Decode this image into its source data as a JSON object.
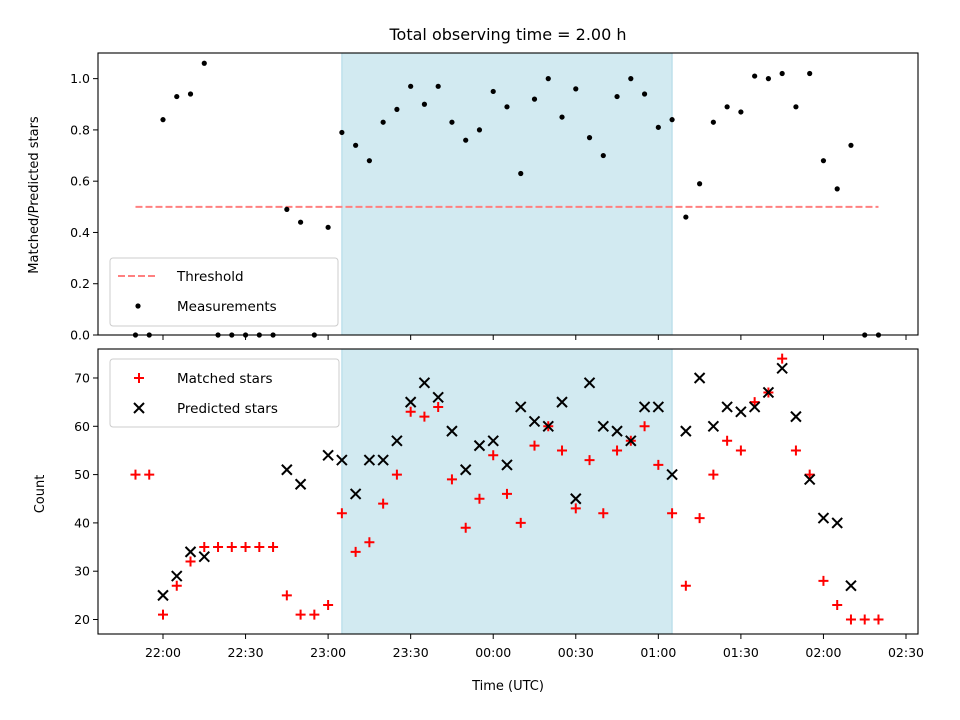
{
  "chart_data": [
    {
      "type": "scatter",
      "title": "Total observing time = 2.00 h",
      "xlabel": "",
      "ylabel": "Matched/Predicted stars",
      "ylim": [
        0,
        1.1
      ],
      "yticks": [
        "0.0",
        "0.2",
        "0.4",
        "0.6",
        "0.8",
        "1.0"
      ],
      "observing_window": [
        "23:05",
        "01:05"
      ],
      "threshold": {
        "name": "Threshold",
        "value": 0.5,
        "x_range": [
          "21:50",
          "02:20"
        ],
        "color": "#ff8080",
        "style": "dashed"
      },
      "series": [
        {
          "name": "Measurements",
          "marker": "dot",
          "color": "#000000",
          "points": [
            [
              "21:50",
              0.0
            ],
            [
              "21:55",
              0.0
            ],
            [
              "22:00",
              0.84
            ],
            [
              "22:05",
              0.93
            ],
            [
              "22:10",
              0.94
            ],
            [
              "22:15",
              1.06
            ],
            [
              "22:20",
              0.0
            ],
            [
              "22:25",
              0.0
            ],
            [
              "22:30",
              0.0
            ],
            [
              "22:35",
              0.0
            ],
            [
              "22:40",
              0.0
            ],
            [
              "22:45",
              0.49
            ],
            [
              "22:50",
              0.44
            ],
            [
              "22:55",
              0.0
            ],
            [
              "23:00",
              0.42
            ],
            [
              "23:05",
              0.79
            ],
            [
              "23:10",
              0.74
            ],
            [
              "23:15",
              0.68
            ],
            [
              "23:20",
              0.83
            ],
            [
              "23:25",
              0.88
            ],
            [
              "23:30",
              0.97
            ],
            [
              "23:35",
              0.9
            ],
            [
              "23:40",
              0.97
            ],
            [
              "23:45",
              0.83
            ],
            [
              "23:50",
              0.76
            ],
            [
              "23:55",
              0.8
            ],
            [
              "00:00",
              0.95
            ],
            [
              "00:05",
              0.89
            ],
            [
              "00:10",
              0.63
            ],
            [
              "00:15",
              0.92
            ],
            [
              "00:20",
              1.0
            ],
            [
              "00:25",
              0.85
            ],
            [
              "00:30",
              0.96
            ],
            [
              "00:35",
              0.77
            ],
            [
              "00:40",
              0.7
            ],
            [
              "00:45",
              0.93
            ],
            [
              "00:50",
              1.0
            ],
            [
              "00:55",
              0.94
            ],
            [
              "01:00",
              0.81
            ],
            [
              "01:05",
              0.84
            ],
            [
              "01:10",
              0.46
            ],
            [
              "01:15",
              0.59
            ],
            [
              "01:20",
              0.83
            ],
            [
              "01:25",
              0.89
            ],
            [
              "01:30",
              0.87
            ],
            [
              "01:35",
              1.01
            ],
            [
              "01:40",
              1.0
            ],
            [
              "01:45",
              1.02
            ],
            [
              "01:50",
              0.89
            ],
            [
              "01:55",
              1.02
            ],
            [
              "02:00",
              0.68
            ],
            [
              "02:05",
              0.57
            ],
            [
              "02:10",
              0.74
            ],
            [
              "02:15",
              0.0
            ],
            [
              "02:20",
              0.0
            ]
          ]
        }
      ],
      "legend": {
        "position": "lower-left",
        "entries": [
          "Threshold",
          "Measurements"
        ]
      },
      "grid": false
    },
    {
      "type": "scatter",
      "title": "",
      "xlabel": "Time (UTC)",
      "ylabel": "Count",
      "ylim": [
        17,
        76
      ],
      "yticks": [
        "20",
        "30",
        "40",
        "50",
        "60",
        "70"
      ],
      "xticks": [
        "22:00",
        "22:30",
        "23:00",
        "23:30",
        "00:00",
        "00:30",
        "01:00",
        "01:30",
        "02:00",
        "02:30"
      ],
      "observing_window": [
        "23:05",
        "01:05"
      ],
      "series": [
        {
          "name": "Matched stars",
          "marker": "plus",
          "color": "#ff0000",
          "points": [
            [
              "21:50",
              50
            ],
            [
              "21:55",
              50
            ],
            [
              "22:00",
              21
            ],
            [
              "22:05",
              27
            ],
            [
              "22:10",
              32
            ],
            [
              "22:15",
              35
            ],
            [
              "22:20",
              35
            ],
            [
              "22:25",
              35
            ],
            [
              "22:30",
              35
            ],
            [
              "22:35",
              35
            ],
            [
              "22:40",
              35
            ],
            [
              "22:45",
              25
            ],
            [
              "22:50",
              21
            ],
            [
              "22:55",
              21
            ],
            [
              "23:00",
              23
            ],
            [
              "23:05",
              42
            ],
            [
              "23:10",
              34
            ],
            [
              "23:15",
              36
            ],
            [
              "23:20",
              44
            ],
            [
              "23:25",
              50
            ],
            [
              "23:30",
              63
            ],
            [
              "23:35",
              62
            ],
            [
              "23:40",
              64
            ],
            [
              "23:45",
              49
            ],
            [
              "23:50",
              39
            ],
            [
              "23:55",
              45
            ],
            [
              "00:00",
              54
            ],
            [
              "00:05",
              46
            ],
            [
              "00:10",
              40
            ],
            [
              "00:15",
              56
            ],
            [
              "00:20",
              60
            ],
            [
              "00:25",
              55
            ],
            [
              "00:30",
              43
            ],
            [
              "00:35",
              53
            ],
            [
              "00:40",
              42
            ],
            [
              "00:45",
              55
            ],
            [
              "00:50",
              57
            ],
            [
              "00:55",
              60
            ],
            [
              "01:00",
              52
            ],
            [
              "01:05",
              42
            ],
            [
              "01:10",
              27
            ],
            [
              "01:15",
              41
            ],
            [
              "01:20",
              50
            ],
            [
              "01:25",
              57
            ],
            [
              "01:30",
              55
            ],
            [
              "01:35",
              65
            ],
            [
              "01:40",
              67
            ],
            [
              "01:45",
              74
            ],
            [
              "01:50",
              55
            ],
            [
              "01:55",
              50
            ],
            [
              "02:00",
              28
            ],
            [
              "02:05",
              23
            ],
            [
              "02:10",
              20
            ],
            [
              "02:15",
              20
            ],
            [
              "02:20",
              20
            ]
          ]
        },
        {
          "name": "Predicted stars",
          "marker": "x",
          "color": "#000000",
          "points": [
            [
              "22:00",
              25
            ],
            [
              "22:05",
              29
            ],
            [
              "22:10",
              34
            ],
            [
              "22:15",
              33
            ],
            [
              "22:45",
              51
            ],
            [
              "22:50",
              48
            ],
            [
              "23:00",
              54
            ],
            [
              "23:05",
              53
            ],
            [
              "23:10",
              46
            ],
            [
              "23:15",
              53
            ],
            [
              "23:20",
              53
            ],
            [
              "23:25",
              57
            ],
            [
              "23:30",
              65
            ],
            [
              "23:35",
              69
            ],
            [
              "23:40",
              66
            ],
            [
              "23:45",
              59
            ],
            [
              "23:50",
              51
            ],
            [
              "23:55",
              56
            ],
            [
              "00:00",
              57
            ],
            [
              "00:05",
              52
            ],
            [
              "00:10",
              64
            ],
            [
              "00:15",
              61
            ],
            [
              "00:20",
              60
            ],
            [
              "00:25",
              65
            ],
            [
              "00:30",
              45
            ],
            [
              "00:35",
              69
            ],
            [
              "00:40",
              60
            ],
            [
              "00:45",
              59
            ],
            [
              "00:50",
              57
            ],
            [
              "00:55",
              64
            ],
            [
              "01:00",
              64
            ],
            [
              "01:05",
              50
            ],
            [
              "01:10",
              59
            ],
            [
              "01:15",
              70
            ],
            [
              "01:20",
              60
            ],
            [
              "01:25",
              64
            ],
            [
              "01:30",
              63
            ],
            [
              "01:35",
              64
            ],
            [
              "01:40",
              67
            ],
            [
              "01:45",
              72
            ],
            [
              "01:50",
              62
            ],
            [
              "01:55",
              49
            ],
            [
              "02:00",
              41
            ],
            [
              "02:05",
              40
            ],
            [
              "02:10",
              27
            ]
          ]
        }
      ],
      "legend": {
        "position": "upper-left",
        "entries": [
          "Matched stars",
          "Predicted stars"
        ]
      },
      "grid": false,
      "shade_color": "#add8e6"
    }
  ]
}
